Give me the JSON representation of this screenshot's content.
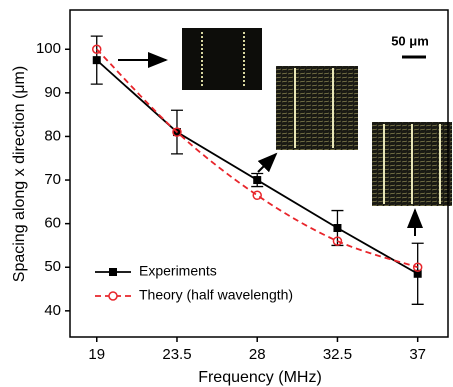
{
  "chart_data": {
    "type": "line",
    "x_label": "Frequency (MHz)",
    "y_label": "Spacing along x direction (μm)",
    "x": [
      19,
      23.5,
      28,
      32.5,
      37
    ],
    "series": [
      {
        "name": "Experiments",
        "color": "#000000",
        "values": [
          97.5,
          81,
          70,
          59,
          48.5
        ],
        "errors": [
          5.5,
          5,
          1.5,
          4,
          7
        ]
      },
      {
        "name": "Theory (half wavelength)",
        "color": "#e8252b",
        "values": [
          100,
          81,
          66.5,
          56,
          50
        ]
      }
    ],
    "xlim": [
      17.5,
      38.7
    ],
    "ylim": [
      34,
      109
    ],
    "xticks": [
      19,
      23.5,
      28,
      32.5,
      37
    ],
    "yticks": [
      40,
      50,
      60,
      70,
      80,
      90,
      100
    ],
    "legend": "lower left",
    "annotations": [
      "50 μm"
    ]
  }
}
